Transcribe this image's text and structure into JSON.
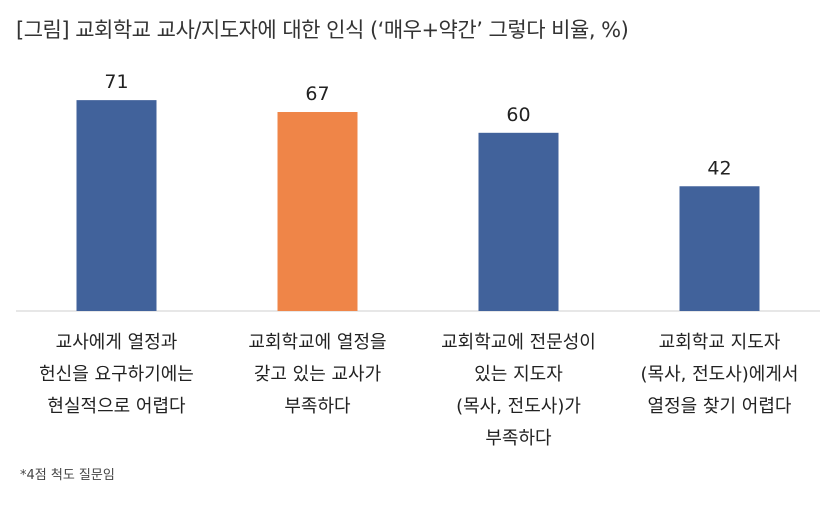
{
  "chart_data": {
    "type": "bar",
    "title": "[그림] 교회학교 교사/지도자에 대한 인식 (‘매우+약간’ 그렇다 비율, %)",
    "categories": [
      [
        "교사에게 열정과",
        "헌신을 요구하기에는",
        "현실적으로 어렵다"
      ],
      [
        "교회학교에 열정을",
        "갖고 있는 교사가",
        "부족하다"
      ],
      [
        "교회학교에 전문성이",
        "있는 지도자",
        "(목사, 전도사)가",
        "부족하다"
      ],
      [
        "교회학교 지도자",
        "(목사, 전도사)에게서",
        "열정을 찾기 어렵다"
      ]
    ],
    "values": [
      71,
      67,
      60,
      42
    ],
    "colors": [
      "#41629b",
      "#ef8548",
      "#41629b",
      "#41629b"
    ],
    "ylim": [
      0,
      80
    ],
    "grid": false,
    "xlabel": "",
    "ylabel": ""
  },
  "footnote": "*4점 척도 질문임"
}
